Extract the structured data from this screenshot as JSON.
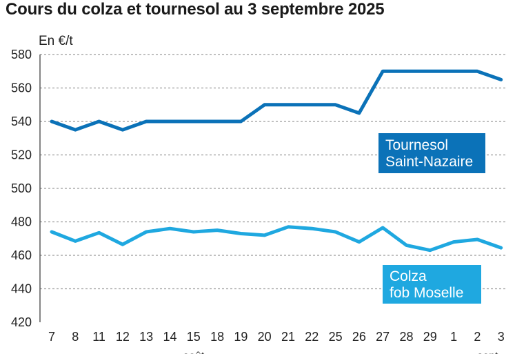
{
  "chart_data": {
    "type": "line",
    "title": "Cours du colza et tournesol au 3 septembre 2025",
    "ylabel": "En €/t",
    "xlabel": "",
    "ylim": [
      420,
      580
    ],
    "yticks": [
      420,
      440,
      460,
      480,
      500,
      520,
      540,
      560,
      580
    ],
    "grid": true,
    "categories": [
      "7",
      "8",
      "11",
      "12",
      "13",
      "14",
      "15",
      "18",
      "19",
      "20",
      "21",
      "22",
      "25",
      "26",
      "27",
      "28",
      "29",
      "1",
      "2",
      "3"
    ],
    "month_labels": [
      "août",
      "sept."
    ],
    "colors": {
      "tournesol": "#0b72b8",
      "colza": "#1fa8e0"
    },
    "series": [
      {
        "name": "Tournesol Saint-Nazaire",
        "legend_lines": [
          "Tournesol",
          "Saint-Nazaire"
        ],
        "values": [
          540,
          535,
          540,
          535,
          540,
          540,
          540,
          540,
          540,
          550,
          550,
          550,
          550,
          545,
          570,
          570,
          570,
          570,
          570,
          565
        ]
      },
      {
        "name": "Colza fob Moselle",
        "legend_lines": [
          "Colza",
          "fob Moselle"
        ],
        "values": [
          474,
          468.5,
          473.5,
          466.5,
          474,
          476,
          474,
          475,
          473,
          472,
          477,
          476,
          474,
          468,
          476.5,
          466,
          463,
          468,
          469.5,
          464.5
        ]
      }
    ]
  }
}
